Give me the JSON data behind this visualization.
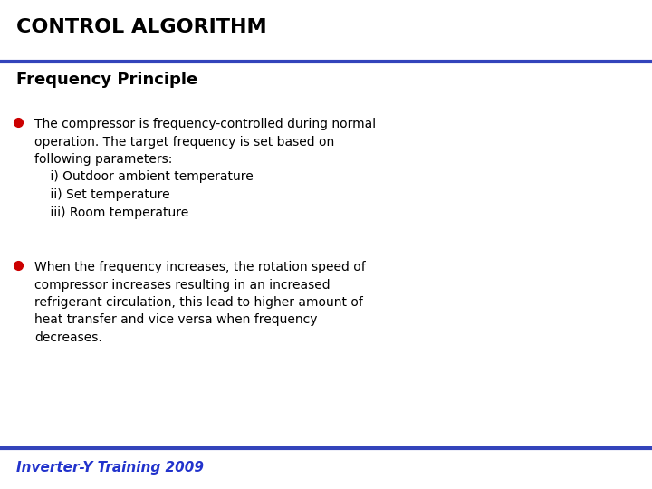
{
  "title": "CONTROL ALGORITHM",
  "subtitle": "Frequency Principle",
  "bullet1_text": "The compressor is frequency-controlled during normal\noperation. The target frequency is set based on\nfollowing parameters:\n    i) Outdoor ambient temperature\n    ii) Set temperature\n    iii) Room temperature",
  "bullet2_text": "When the frequency increases, the rotation speed of\ncompressor increases resulting in an increased\nrefrigerant circulation, this lead to higher amount of\nheat transfer and vice versa when frequency\ndecreases.",
  "footer": "Inverter-Y Training 2009",
  "bg_color": "#ffffff",
  "title_color": "#000000",
  "subtitle_color": "#000000",
  "body_color": "#000000",
  "bullet_color": "#cc0000",
  "footer_text_color": "#2233cc",
  "header_line_color": "#3344bb",
  "footer_line_color": "#3344bb",
  "title_fontsize": 16,
  "subtitle_fontsize": 13,
  "body_fontsize": 10,
  "footer_fontsize": 11
}
